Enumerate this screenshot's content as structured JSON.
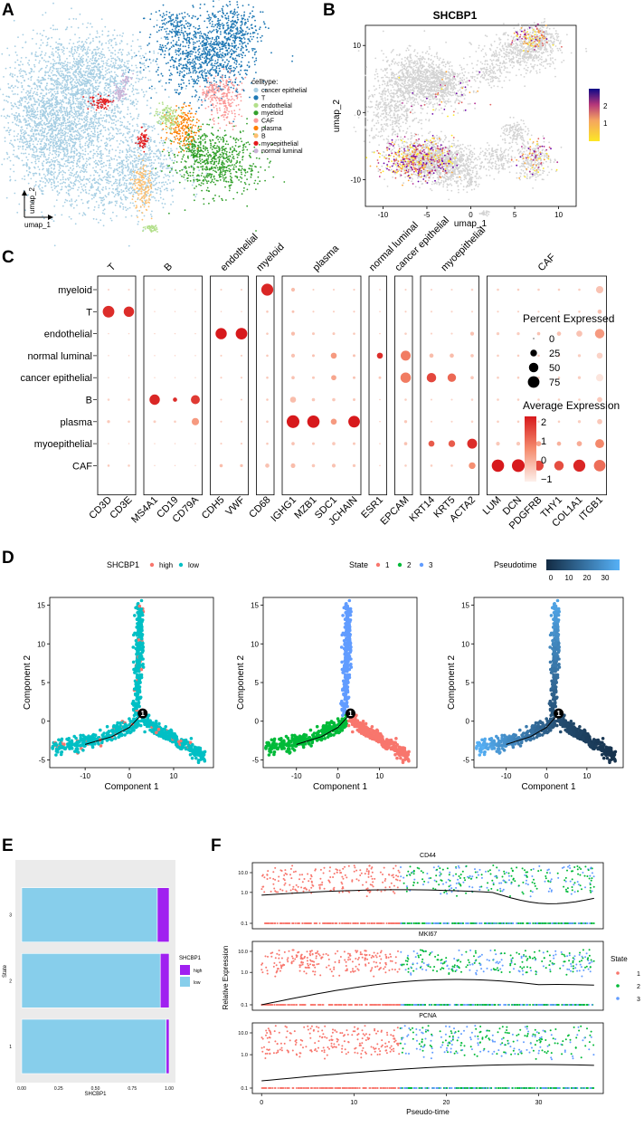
{
  "panel_labels": [
    "A",
    "B",
    "C",
    "D",
    "E",
    "F"
  ],
  "panelA": {
    "legend_title": "celltype:",
    "legend": [
      {
        "label": "cancer epithelial",
        "color": "#a6cee3"
      },
      {
        "label": "T",
        "color": "#1f78b4"
      },
      {
        "label": "endothelial",
        "color": "#b2df8a"
      },
      {
        "label": "myeloid",
        "color": "#33a02c"
      },
      {
        "label": "CAF",
        "color": "#fb9a99"
      },
      {
        "label": "plasma",
        "color": "#ff7f00"
      },
      {
        "label": "B",
        "color": "#fdbf6f"
      },
      {
        "label": "myoepithelial",
        "color": "#e31a1c"
      },
      {
        "label": "normal luminal",
        "color": "#cab2d6"
      }
    ],
    "xlabel": "umap_1",
    "ylabel": "umap_2"
  },
  "panelB": {
    "title": "SHCBP1",
    "xlabel": "umap_1",
    "ylabel": "umap_2",
    "xticks": [
      -10,
      -5,
      0,
      5,
      10
    ],
    "yticks": [
      10,
      0,
      -10
    ],
    "colorbar_ticks": [
      "2",
      "1"
    ],
    "colorbar_colors": [
      "#fde725",
      "#dd5e66",
      "#7a0f7c",
      "#0d0887"
    ]
  },
  "chart_data": [
    {
      "type": "scatter",
      "panel": "B",
      "title": "SHCBP1",
      "xlabel": "umap_1",
      "ylabel": "umap_2",
      "xlim": [
        -12,
        12
      ],
      "ylim": [
        -14,
        13
      ],
      "color_range": [
        0,
        2.5
      ]
    },
    {
      "type": "dot",
      "panel": "C",
      "groups": [
        {
          "name": "T",
          "genes": [
            "CD3D",
            "CD3E"
          ]
        },
        {
          "name": "B",
          "genes": [
            "MS4A1",
            "CD19",
            "CD79A"
          ]
        },
        {
          "name": "endothelial",
          "genes": [
            "CDH5",
            "VWF"
          ]
        },
        {
          "name": "myeloid",
          "genes": [
            "CD68"
          ]
        },
        {
          "name": "plasma",
          "genes": [
            "IGHG1",
            "MZB1",
            "SDC1",
            "JCHAIN"
          ]
        },
        {
          "name": "normal luminal",
          "genes": [
            "ESR1"
          ]
        },
        {
          "name": "cancer epithelial",
          "genes": [
            "EPCAM"
          ]
        },
        {
          "name": "myoepithelial",
          "genes": [
            "KRT14",
            "KRT5",
            "ACTA2"
          ]
        },
        {
          "name": "CAF",
          "genes": [
            "LUM",
            "DCN",
            "PDGFRB",
            "THY1",
            "COL1A1",
            "ITGB1"
          ]
        }
      ],
      "rows": [
        "myeloid",
        "T",
        "endothelial",
        "normal luminal",
        "cancer epithelial",
        "B",
        "plasma",
        "myoepithelial",
        "CAF"
      ],
      "genes": [
        "CD3D",
        "CD3E",
        "MS4A1",
        "CD19",
        "CD79A",
        "CDH5",
        "VWF",
        "CD68",
        "IGHG1",
        "MZB1",
        "SDC1",
        "JCHAIN",
        "ESR1",
        "EPCAM",
        "KRT14",
        "KRT5",
        "ACTA2",
        "LUM",
        "DCN",
        "PDGFRB",
        "THY1",
        "COL1A1",
        "ITGB1"
      ],
      "percent": [
        [
          2,
          2,
          1,
          1,
          1,
          2,
          2,
          80,
          8,
          2,
          2,
          2,
          1,
          2,
          2,
          2,
          3,
          3,
          3,
          3,
          3,
          3,
          30
        ],
        [
          75,
          60,
          1,
          1,
          1,
          1,
          1,
          3,
          4,
          2,
          2,
          2,
          1,
          2,
          2,
          2,
          2,
          2,
          2,
          2,
          2,
          3,
          10
        ],
        [
          1,
          1,
          1,
          1,
          1,
          70,
          75,
          3,
          8,
          4,
          4,
          3,
          1,
          3,
          2,
          2,
          8,
          5,
          5,
          6,
          10,
          20,
          50
        ],
        [
          1,
          1,
          1,
          1,
          1,
          2,
          2,
          3,
          8,
          4,
          20,
          4,
          20,
          55,
          10,
          10,
          6,
          3,
          3,
          3,
          3,
          5,
          20
        ],
        [
          1,
          1,
          1,
          1,
          1,
          2,
          2,
          3,
          6,
          4,
          15,
          4,
          4,
          60,
          50,
          40,
          6,
          3,
          3,
          3,
          3,
          5,
          30
        ],
        [
          3,
          3,
          60,
          10,
          45,
          2,
          2,
          3,
          20,
          6,
          6,
          4,
          1,
          3,
          2,
          2,
          3,
          3,
          3,
          3,
          3,
          3,
          15
        ],
        [
          5,
          3,
          4,
          3,
          30,
          2,
          2,
          3,
          90,
          85,
          20,
          75,
          1,
          5,
          2,
          2,
          3,
          3,
          3,
          3,
          3,
          5,
          15
        ],
        [
          1,
          1,
          1,
          1,
          1,
          2,
          2,
          3,
          6,
          4,
          6,
          4,
          1,
          6,
          20,
          25,
          55,
          8,
          8,
          15,
          10,
          15,
          45
        ],
        [
          3,
          3,
          1,
          1,
          1,
          6,
          5,
          10,
          12,
          6,
          8,
          5,
          1,
          3,
          3,
          3,
          25,
          85,
          90,
          55,
          50,
          80,
          75
        ]
      ],
      "average": [
        [
          -0.5,
          -0.5,
          -0.5,
          -0.5,
          -0.5,
          -0.4,
          -0.4,
          2.3,
          -0.1,
          -0.4,
          -0.4,
          -0.3,
          -0.3,
          -0.4,
          -0.5,
          -0.5,
          -0.5,
          -0.4,
          -0.4,
          -0.4,
          -0.4,
          -0.4,
          -0.2
        ],
        [
          2.2,
          2.2,
          -0.5,
          -0.5,
          -0.5,
          -0.4,
          -0.4,
          -0.3,
          -0.2,
          -0.4,
          -0.4,
          -0.3,
          -0.3,
          -0.4,
          -0.5,
          -0.5,
          -0.5,
          -0.4,
          -0.4,
          -0.4,
          -0.4,
          -0.4,
          -0.2
        ],
        [
          -0.5,
          -0.5,
          -0.5,
          -0.5,
          -0.5,
          2.5,
          2.5,
          -0.3,
          -0.1,
          -0.3,
          -0.3,
          -0.3,
          -0.3,
          -0.4,
          -0.5,
          -0.5,
          -0.2,
          -0.4,
          -0.4,
          -0.2,
          -0.2,
          -0.2,
          0.5
        ],
        [
          -0.5,
          -0.5,
          -0.5,
          -0.5,
          -0.5,
          -0.4,
          -0.4,
          -0.3,
          -0.2,
          -0.2,
          0.5,
          -0.2,
          2.2,
          1.0,
          -0.1,
          -0.1,
          -0.3,
          -0.4,
          -0.4,
          -0.4,
          -0.4,
          -0.4,
          -0.5
        ],
        [
          -0.5,
          -0.5,
          -0.5,
          -0.5,
          -0.5,
          -0.4,
          -0.4,
          -0.3,
          -0.2,
          -0.3,
          0.3,
          -0.2,
          -0.3,
          1.0,
          1.8,
          1.3,
          -0.3,
          -0.4,
          -0.4,
          -0.4,
          -0.4,
          -0.4,
          -0.8
        ],
        [
          -0.5,
          -0.5,
          2.3,
          2.2,
          2.0,
          -0.4,
          -0.4,
          -0.3,
          -0.1,
          -0.3,
          -0.3,
          -0.3,
          -0.3,
          -0.4,
          -0.5,
          -0.5,
          -0.5,
          -0.4,
          -0.4,
          -0.4,
          -0.4,
          -0.4,
          -0.3
        ],
        [
          -0.3,
          -0.4,
          -0.4,
          -0.4,
          0.5,
          -0.4,
          -0.4,
          -0.3,
          2.5,
          2.5,
          0.5,
          2.5,
          -0.3,
          -0.3,
          -0.5,
          -0.5,
          -0.5,
          -0.4,
          -0.4,
          -0.4,
          -0.4,
          -0.4,
          -0.3
        ],
        [
          -0.5,
          -0.5,
          -0.5,
          -0.5,
          -0.5,
          -0.4,
          -0.4,
          -0.3,
          -0.2,
          -0.3,
          -0.3,
          -0.3,
          -0.3,
          -0.2,
          1.5,
          1.5,
          2.2,
          -0.3,
          -0.3,
          0.3,
          0.1,
          0.2,
          0.8
        ],
        [
          -0.3,
          -0.4,
          -0.5,
          -0.5,
          -0.5,
          -0.1,
          -0.2,
          -0.2,
          -0.1,
          -0.3,
          -0.2,
          -0.3,
          -0.3,
          -0.4,
          -0.4,
          -0.4,
          0.7,
          2.5,
          2.5,
          1.8,
          1.7,
          2.3,
          1.2
        ]
      ],
      "legend_size_title": "Percent Expressed",
      "legend_size_values": [
        0,
        25,
        50,
        75
      ],
      "legend_color_title": "Average Expression",
      "legend_color_ticks": [
        2,
        1,
        0,
        -1
      ]
    },
    {
      "type": "scatter",
      "panel": "D",
      "subplots": [
        {
          "legend_title": "SHCBP1",
          "legend": [
            {
              "label": "high",
              "color": "#f8766d"
            },
            {
              "label": "low",
              "color": "#00bfc4"
            }
          ]
        },
        {
          "legend_title": "State",
          "legend": [
            {
              "label": "1",
              "color": "#f8766d"
            },
            {
              "label": "2",
              "color": "#00ba38"
            },
            {
              "label": "3",
              "color": "#619cff"
            }
          ]
        },
        {
          "legend_title": "Pseudotime",
          "colorbar_ticks": [
            0,
            10,
            20,
            30
          ]
        }
      ],
      "xlabel": "Component 1",
      "ylabel": "Component 2",
      "xlim": [
        -18,
        19
      ],
      "ylim": [
        -6,
        16
      ],
      "xticks": [
        -10,
        0,
        10
      ],
      "yticks": [
        15,
        10,
        5,
        0,
        -5
      ],
      "branch_point": "1"
    },
    {
      "type": "bar",
      "panel": "E",
      "orientation": "horizontal",
      "stacked": true,
      "categories": [
        "1",
        "2",
        "3"
      ],
      "series": [
        {
          "name": "low",
          "values": [
            0.98,
            0.94,
            0.92
          ],
          "color": "#87ceeb"
        },
        {
          "name": "high",
          "values": [
            0.02,
            0.06,
            0.08
          ],
          "color": "#a020f0"
        }
      ],
      "xlabel": "SHCBP1",
      "ylabel": "State",
      "xticks": [
        "0.00",
        "0.25",
        "0.50",
        "0.75",
        "1.00"
      ],
      "legend_title": "SHCBP1"
    },
    {
      "type": "scatter",
      "panel": "F",
      "facets": [
        "CD44",
        "MKI67",
        "PCNA"
      ],
      "xlabel": "Pseudo-time",
      "ylabel": "Relative Expression",
      "xticks": [
        0,
        10,
        20,
        30
      ],
      "yticks": [
        "10.0",
        "1.0",
        "0.1"
      ],
      "xlim": [
        -1,
        37
      ],
      "legend_title": "State",
      "legend": [
        {
          "label": "1",
          "color": "#f8766d"
        },
        {
          "label": "2",
          "color": "#00ba38"
        },
        {
          "label": "3",
          "color": "#619cff"
        }
      ]
    }
  ]
}
